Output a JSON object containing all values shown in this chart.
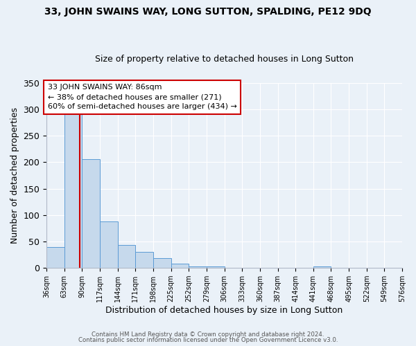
{
  "title": "33, JOHN SWAINS WAY, LONG SUTTON, SPALDING, PE12 9DQ",
  "subtitle": "Size of property relative to detached houses in Long Sutton",
  "xlabel": "Distribution of detached houses by size in Long Sutton",
  "ylabel": "Number of detached properties",
  "bin_edges": [
    36,
    63,
    90,
    117,
    144,
    171,
    198,
    225,
    252,
    279,
    306,
    333,
    360,
    387,
    414,
    441,
    468,
    495,
    522,
    549,
    576
  ],
  "bar_heights": [
    40,
    293,
    205,
    88,
    43,
    30,
    18,
    8,
    3,
    3,
    0,
    0,
    0,
    0,
    0,
    3,
    0,
    0,
    0,
    0
  ],
  "bar_color": "#c6d9ec",
  "bar_edge_color": "#5b9bd5",
  "property_line_x": 86,
  "property_line_color": "#cc0000",
  "annotation_line1": "33 JOHN SWAINS WAY: 86sqm",
  "annotation_line2": "← 38% of detached houses are smaller (271)",
  "annotation_line3": "60% of semi-detached houses are larger (434) →",
  "annotation_box_facecolor": "#ffffff",
  "annotation_box_edgecolor": "#cc0000",
  "ylim": [
    0,
    350
  ],
  "yticks": [
    0,
    50,
    100,
    150,
    200,
    250,
    300,
    350
  ],
  "tick_labels": [
    "36sqm",
    "63sqm",
    "90sqm",
    "117sqm",
    "144sqm",
    "171sqm",
    "198sqm",
    "225sqm",
    "252sqm",
    "279sqm",
    "306sqm",
    "333sqm",
    "360sqm",
    "387sqm",
    "414sqm",
    "441sqm",
    "468sqm",
    "495sqm",
    "522sqm",
    "549sqm",
    "576sqm"
  ],
  "footer_line1": "Contains HM Land Registry data © Crown copyright and database right 2024.",
  "footer_line2": "Contains public sector information licensed under the Open Government Licence v3.0.",
  "bg_color": "#eaf1f8",
  "grid_color": "#ffffff",
  "spine_color": "#b0b8c8",
  "title_fontsize": 10,
  "subtitle_fontsize": 9,
  "xlabel_fontsize": 9,
  "ylabel_fontsize": 9,
  "tick_fontsize": 7,
  "footer_fontsize": 6.2
}
